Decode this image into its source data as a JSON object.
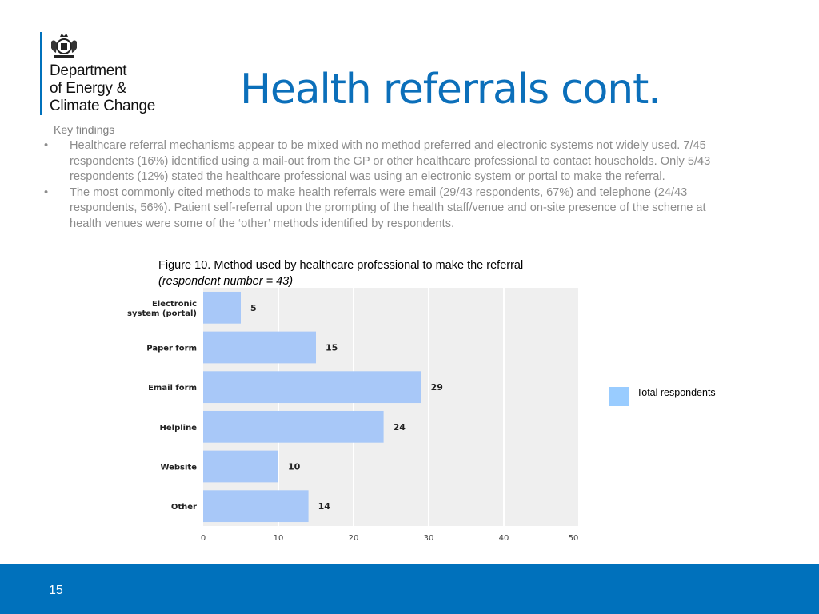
{
  "logo": {
    "line1": "Department",
    "line2": "of Energy &",
    "line3": "Climate Change"
  },
  "title": "Health referrals cont.",
  "key_findings": {
    "heading": "Key findings",
    "bullets": [
      "Healthcare referral mechanisms appear to be mixed with no method preferred and electronic systems not widely used. 7/45 respondents (16%) identified using a mail-out from the GP or other healthcare professional to contact households. Only 5/43 respondents (12%) stated the healthcare professional was using an electronic system or portal to make the referral.",
      "The most commonly cited methods to make health referrals were email (29/43 respondents, 67%) and telephone (24/43 respondents, 56%). Patient self-referral upon the prompting of the health staff/venue and on-site presence of the scheme at health venues were some of the ‘other’ methods identified by respondents."
    ]
  },
  "figure": {
    "caption_main": "Figure 10. Method used by healthcare professional to make the referral ",
    "caption_italic": "(respondent number = 43)"
  },
  "chart_data": {
    "type": "bar",
    "orientation": "horizontal",
    "categories": [
      "Electronic system (portal)",
      "Paper form",
      "Email form",
      "Helpline",
      "Website",
      "Other"
    ],
    "category_lines": [
      [
        "Electronic",
        "system (portal)"
      ],
      [
        "Paper form"
      ],
      [
        "Email form"
      ],
      [
        "Helpline"
      ],
      [
        "Website"
      ],
      [
        "Other"
      ]
    ],
    "values": [
      5,
      15,
      29,
      24,
      10,
      14
    ],
    "series": [
      {
        "name": "Total respondents",
        "values": [
          5,
          15,
          29,
          24,
          10,
          14
        ]
      }
    ],
    "xlim": [
      0,
      50
    ],
    "xticks": [
      0,
      10,
      20,
      30,
      40,
      50
    ],
    "grid": true,
    "legend_position": "right",
    "bar_color": "#a8c8f8",
    "plot_background": "#efefef"
  },
  "legend": {
    "label": "Total respondents",
    "color": "#99ccff"
  },
  "footer": {
    "page_number": "15",
    "color": "#0071bc"
  }
}
